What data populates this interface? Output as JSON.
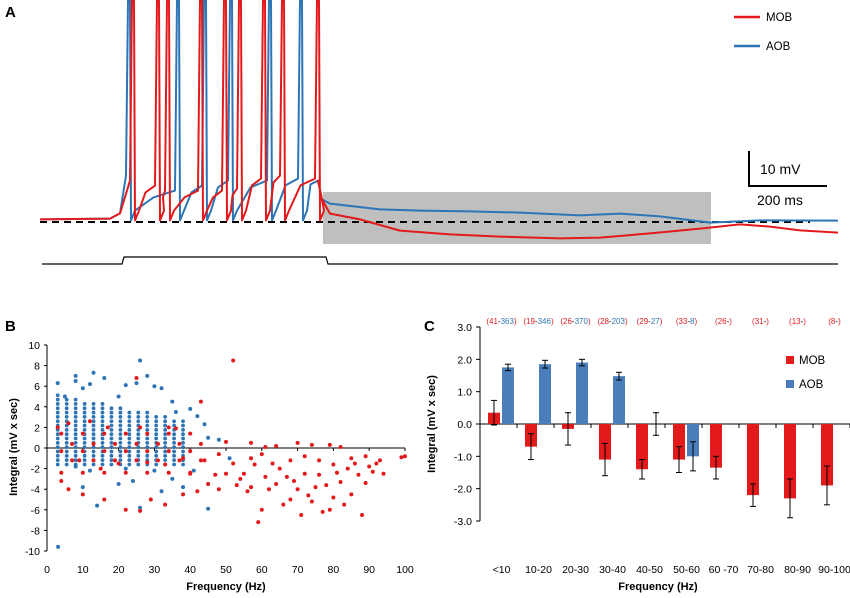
{
  "colors": {
    "mob": "#e31a1c",
    "aob": "#2e75b6",
    "aob_bar": "#4a7ebb",
    "gray_box": "#bfbfbf",
    "black": "#000000",
    "n_label_mob": "#e31a1c",
    "n_label_aob": "#2e75b6"
  },
  "panel_a": {
    "letter": "A",
    "legend": [
      {
        "key": "mob",
        "label": "MOB"
      },
      {
        "key": "aob",
        "label": "AOB"
      }
    ],
    "scale_bar": {
      "voltage_label": "10 mV",
      "time_label": "200 ms"
    }
  },
  "chart_data": [
    {
      "panel": "B",
      "type": "scatter",
      "title": "",
      "xlabel": "Frequency (Hz)",
      "ylabel": "Integral (mV x sec)",
      "xlim": [
        0,
        100
      ],
      "ylim": [
        -10,
        10
      ],
      "xticks": [
        "0",
        "10",
        "20",
        "30",
        "40",
        "50",
        "60",
        "70",
        "80",
        "90",
        "100"
      ],
      "yticks": [
        "10",
        "8",
        "6",
        "4",
        "2",
        "0",
        "-2",
        "-4",
        "-6",
        "-8",
        "-10"
      ],
      "series": [
        {
          "name": "AOB",
          "color_key": "aob",
          "points": [
            [
              3.1,
              -9.6
            ],
            [
              3,
              6.3
            ],
            [
              5,
              5
            ],
            [
              8,
              6.5
            ],
            [
              8,
              7
            ],
            [
              10,
              5.8
            ],
            [
              12,
              6.2
            ],
            [
              13,
              7.3
            ],
            [
              16,
              6.8
            ],
            [
              20,
              5
            ],
            [
              22,
              6.1
            ],
            [
              25,
              6.3
            ],
            [
              26,
              8.5
            ],
            [
              28,
              7
            ],
            [
              30,
              6
            ],
            [
              32,
              5.8
            ],
            [
              35,
              4.5
            ],
            [
              36,
              3.5
            ],
            [
              40,
              3.8
            ],
            [
              42,
              3.1
            ],
            [
              44,
              2.3
            ],
            [
              45,
              1
            ],
            [
              48,
              0.8
            ],
            [
              51,
              -1
            ],
            [
              14,
              -5.6
            ],
            [
              26,
              -5.8
            ],
            [
              45,
              -5.9
            ],
            [
              20,
              -3.5
            ],
            [
              32,
              -4.2
            ],
            [
              38,
              -3.8
            ],
            [
              10,
              -3.8
            ],
            [
              24,
              -3.2
            ],
            [
              35,
              -3
            ],
            [
              30,
              -2.2
            ],
            [
              41,
              -2.2
            ],
            [
              22,
              -2
            ],
            [
              12,
              -2.2
            ],
            [
              8,
              -1.8
            ]
          ]
        },
        {
          "name": "MOB",
          "color_key": "mob",
          "points": [
            [
              52,
              8.5
            ],
            [
              25,
              6.8
            ],
            [
              43,
              4.5
            ],
            [
              3,
              2
            ],
            [
              6,
              2.4
            ],
            [
              12,
              2.6
            ],
            [
              17,
              2
            ],
            [
              26,
              2
            ],
            [
              34,
              2
            ],
            [
              36,
              1.9
            ],
            [
              50,
              0.6
            ],
            [
              57,
              0.5
            ],
            [
              61,
              0.1
            ],
            [
              64,
              0.2
            ],
            [
              70,
              0.5
            ],
            [
              74,
              0.3
            ],
            [
              79,
              0.3
            ],
            [
              82,
              0.1
            ],
            [
              4,
              -3.2
            ],
            [
              6,
              -4
            ],
            [
              10,
              -4.5
            ],
            [
              16,
              -5
            ],
            [
              22,
              -6
            ],
            [
              26,
              -6.1
            ],
            [
              29,
              -5
            ],
            [
              33,
              -5.5
            ],
            [
              38,
              -4.5
            ],
            [
              42,
              -4.2
            ],
            [
              45,
              -3.5
            ],
            [
              48,
              -4
            ],
            [
              50,
              -2.5
            ],
            [
              52,
              -1.5
            ],
            [
              54,
              -3
            ],
            [
              55,
              -2.5
            ],
            [
              57,
              -3.8
            ],
            [
              58,
              -1.6
            ],
            [
              59,
              -7.2
            ],
            [
              60,
              -6
            ],
            [
              61,
              -2.8
            ],
            [
              62,
              -4
            ],
            [
              63,
              -1.5
            ],
            [
              64,
              -3.5
            ],
            [
              66,
              -5.5
            ],
            [
              67,
              -2.8
            ],
            [
              68,
              -5
            ],
            [
              69,
              -3.2
            ],
            [
              70,
              -4
            ],
            [
              71,
              -6.5
            ],
            [
              72,
              -2.5
            ],
            [
              73,
              -4.6
            ],
            [
              74,
              -5.2
            ],
            [
              75,
              -3.8
            ],
            [
              76,
              -2.6
            ],
            [
              77,
              -6.2
            ],
            [
              78,
              -3.6
            ],
            [
              79,
              -6
            ],
            [
              80,
              -4.8
            ],
            [
              81,
              -2.4
            ],
            [
              82,
              -3.3
            ],
            [
              83,
              -5.5
            ],
            [
              84,
              -2
            ],
            [
              85,
              -4.5
            ],
            [
              86,
              -1.5
            ],
            [
              87,
              -2.6
            ],
            [
              88,
              -6.5
            ],
            [
              89,
              -3.4
            ],
            [
              90,
              -1.8
            ],
            [
              91,
              -2.3
            ],
            [
              92,
              -1.5
            ],
            [
              94,
              -2.5
            ],
            [
              99,
              -0.9
            ],
            [
              100,
              -0.8
            ],
            [
              20,
              -1.5
            ],
            [
              15,
              -2
            ],
            [
              9,
              -1.2
            ],
            [
              28,
              -1.4
            ],
            [
              33,
              -1.6
            ],
            [
              40,
              -2.5
            ],
            [
              44,
              -1.2
            ],
            [
              47,
              -2.6
            ],
            [
              53,
              -3.6
            ],
            [
              56,
              -4.2
            ],
            [
              65,
              -2
            ],
            [
              68,
              -1.2
            ],
            [
              72,
              -0.8
            ],
            [
              76,
              -1.2
            ],
            [
              80,
              -1.6
            ],
            [
              85,
              -1
            ],
            [
              89,
              -0.8
            ],
            [
              93,
              -1.2
            ],
            [
              57,
              -1
            ],
            [
              60,
              -0.6
            ],
            [
              48,
              -0.6
            ],
            [
              38,
              -1
            ]
          ]
        }
      ]
    },
    {
      "panel": "C",
      "type": "bar",
      "title": "",
      "xlabel": "Frequency (Hz)",
      "ylabel": "Integral (mV x sec)",
      "ylim": [
        -3,
        3
      ],
      "yticks": [
        "3.0",
        "2.0",
        "1.0",
        "0.0",
        "-1.0",
        "-2.0",
        "-3.0"
      ],
      "categories": [
        "<10",
        "10-20",
        "20-30",
        "30-40",
        "40-50",
        "50-60",
        "60 -70",
        "70-80",
        "80-90",
        "90-100"
      ],
      "series": [
        {
          "name": "MOB",
          "color_key": "mob",
          "values": [
            0.35,
            -0.7,
            -0.15,
            -1.1,
            -1.4,
            -1.1,
            -1.35,
            -2.2,
            -2.3,
            -1.9
          ],
          "errors": [
            0.38,
            0.4,
            0.5,
            0.5,
            0.3,
            0.4,
            0.35,
            0.35,
            0.6,
            0.6
          ]
        },
        {
          "name": "AOB",
          "color_key": "aob_bar",
          "values": [
            1.75,
            1.85,
            1.9,
            1.48,
            0.0,
            -1.0,
            null,
            null,
            null,
            null
          ],
          "errors": [
            0.1,
            0.12,
            0.1,
            0.12,
            0.35,
            0.45,
            null,
            null,
            null,
            null
          ]
        }
      ],
      "n_labels": [
        {
          "mob": "41",
          "aob": "363"
        },
        {
          "mob": "19",
          "aob": "346"
        },
        {
          "mob": "26",
          "aob": "370"
        },
        {
          "mob": "28",
          "aob": "203"
        },
        {
          "mob": "29",
          "aob": "27"
        },
        {
          "mob": "33",
          "aob": "8"
        },
        {
          "mob": "26",
          "aob": ""
        },
        {
          "mob": "31",
          "aob": ""
        },
        {
          "mob": "13",
          "aob": ""
        },
        {
          "mob": "8",
          "aob": ""
        }
      ],
      "legend": [
        "MOB",
        "AOB"
      ]
    }
  ],
  "panel_letters": {
    "b": "B",
    "c": "C"
  }
}
